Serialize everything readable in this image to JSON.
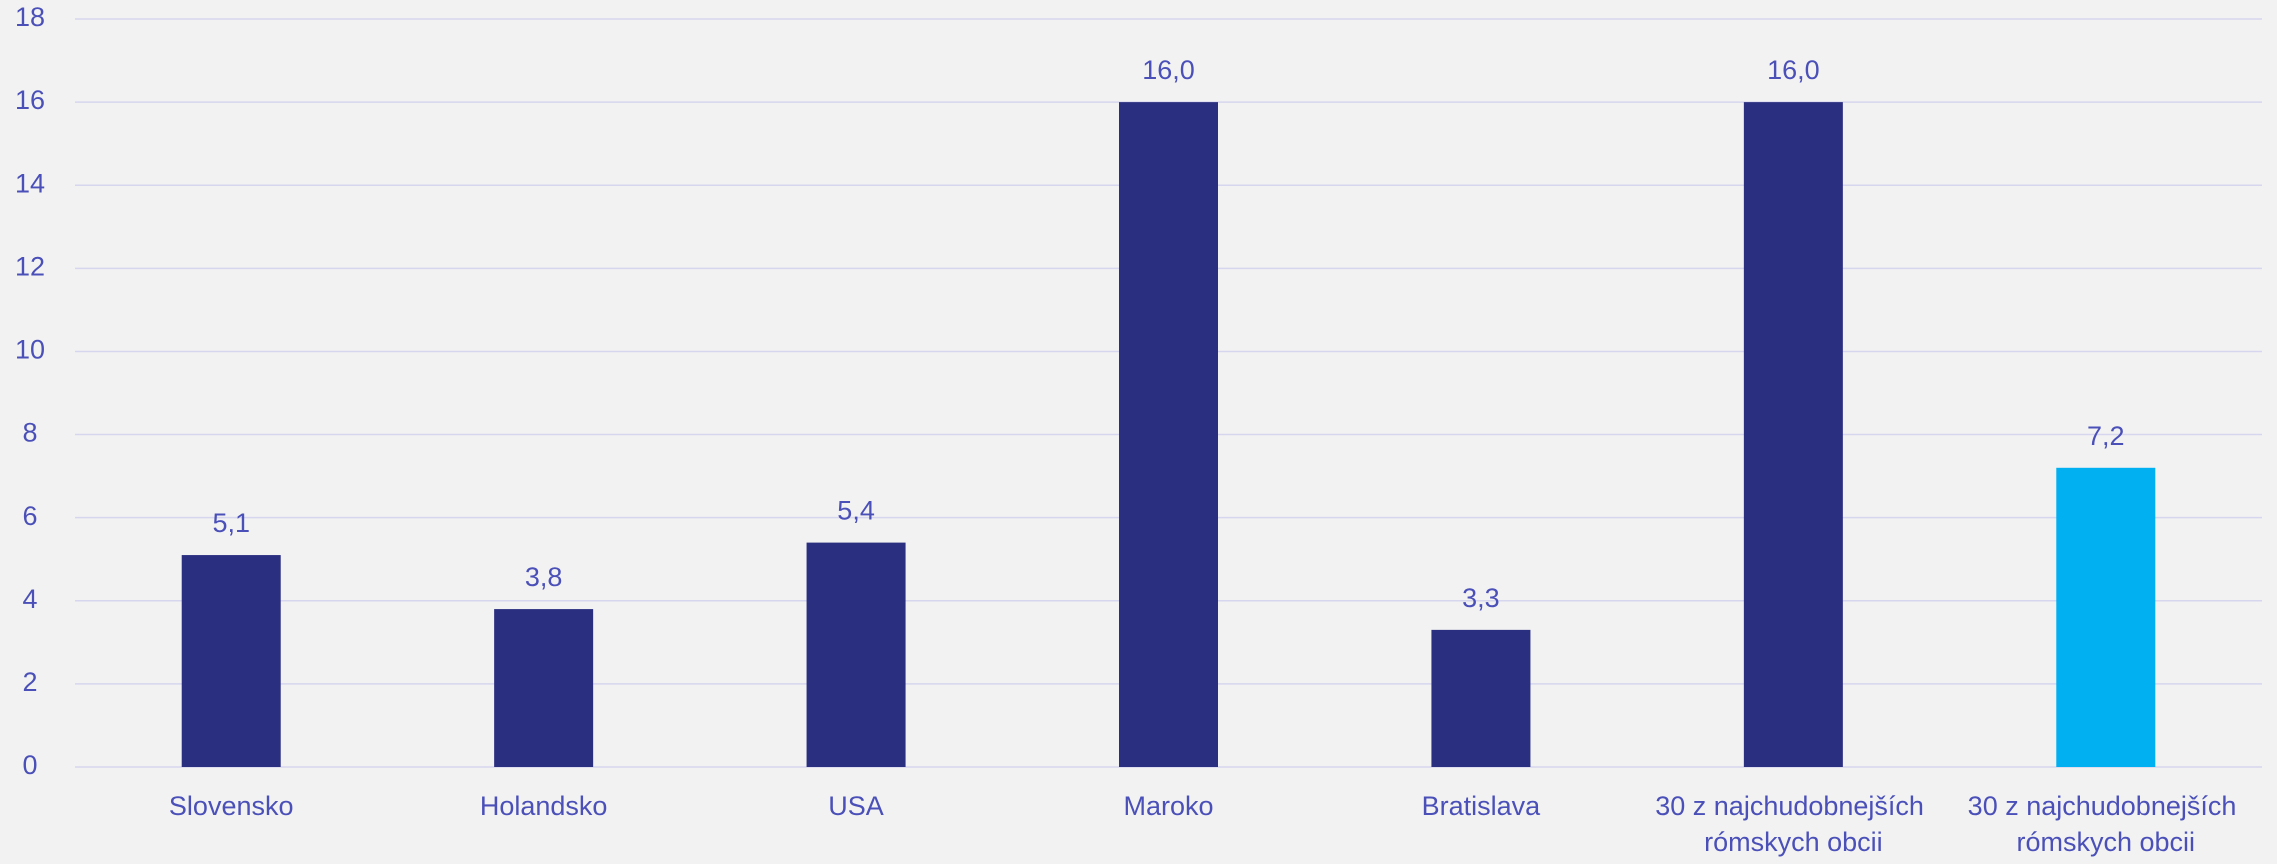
{
  "chart_data": {
    "type": "bar",
    "categories": [
      "Slovensko",
      "Holandsko",
      "USA",
      "Maroko",
      "Bratislava",
      "30 z najchudobnejších rómskych obcii",
      "30 z najchudobnejších rómskych obcii"
    ],
    "values": [
      5.1,
      3.8,
      5.4,
      16.0,
      3.3,
      16.0,
      7.2
    ],
    "value_labels": [
      "5,1",
      "3,8",
      "5,4",
      "16,0",
      "3,3",
      "16,0",
      "7,2"
    ],
    "colors": [
      "#2b2f80",
      "#2b2f80",
      "#2b2f80",
      "#2b2f80",
      "#2b2f80",
      "#2b2f80",
      "#00b0f0"
    ],
    "ylim": [
      0,
      18
    ],
    "yticks": [
      0,
      2,
      4,
      6,
      8,
      10,
      12,
      14,
      16,
      18
    ],
    "grid": true
  }
}
